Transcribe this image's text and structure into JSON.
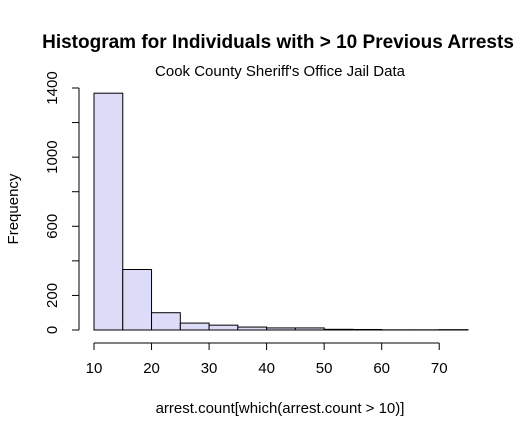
{
  "chart_data": {
    "type": "bar",
    "title": "Histogram for Individuals with > 10 Previous Arrests",
    "subtitle": "Cook County Sheriff's Office Jail Data",
    "xlabel": "arrest.count[which(arrest.count > 10)]",
    "ylabel": "Frequency",
    "bins": [
      {
        "x0": 10,
        "x1": 15,
        "count": 1370
      },
      {
        "x0": 15,
        "x1": 20,
        "count": 350
      },
      {
        "x0": 20,
        "x1": 25,
        "count": 100
      },
      {
        "x0": 25,
        "x1": 30,
        "count": 40
      },
      {
        "x0": 30,
        "x1": 35,
        "count": 28
      },
      {
        "x0": 35,
        "x1": 40,
        "count": 17
      },
      {
        "x0": 40,
        "x1": 45,
        "count": 12
      },
      {
        "x0": 45,
        "x1": 50,
        "count": 12
      },
      {
        "x0": 50,
        "x1": 55,
        "count": 4
      },
      {
        "x0": 55,
        "x1": 60,
        "count": 3
      },
      {
        "x0": 60,
        "x1": 65,
        "count": 1
      },
      {
        "x0": 65,
        "x1": 70,
        "count": 1
      },
      {
        "x0": 70,
        "x1": 75,
        "count": 2
      }
    ],
    "xlim": [
      10,
      75
    ],
    "ylim": [
      0,
      1400
    ],
    "x_ticks": [
      10,
      20,
      30,
      40,
      50,
      60,
      70
    ],
    "y_ticks": [
      0,
      200,
      400,
      600,
      800,
      1000,
      1200,
      1400
    ],
    "y_tick_labels": [
      "0",
      "200",
      "",
      "600",
      "",
      "1000",
      "",
      "1400"
    ],
    "grid": false,
    "bar_color": "#dcdcf8"
  }
}
